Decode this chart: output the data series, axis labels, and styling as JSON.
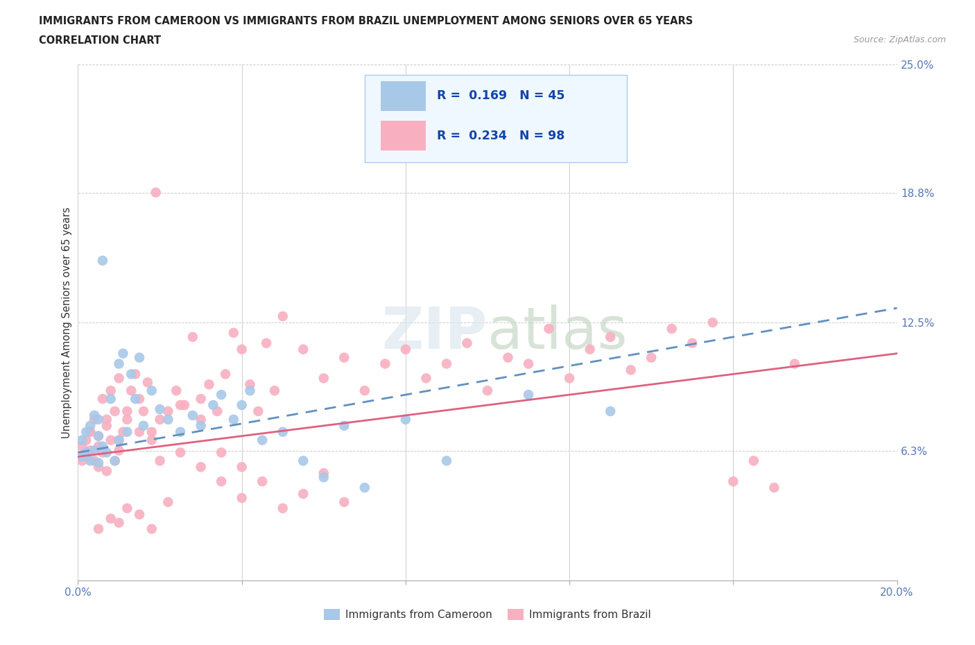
{
  "title_line1": "IMMIGRANTS FROM CAMEROON VS IMMIGRANTS FROM BRAZIL UNEMPLOYMENT AMONG SENIORS OVER 65 YEARS",
  "title_line2": "CORRELATION CHART",
  "source": "Source: ZipAtlas.com",
  "ylabel": "Unemployment Among Seniors over 65 years",
  "xlim": [
    0,
    0.2
  ],
  "ylim": [
    0,
    0.25
  ],
  "yticks_right": [
    0.063,
    0.125,
    0.188,
    0.25
  ],
  "ytick_right_labels": [
    "6.3%",
    "12.5%",
    "18.8%",
    "25.0%"
  ],
  "cameroon_R": 0.169,
  "cameroon_N": 45,
  "brazil_R": 0.234,
  "brazil_N": 98,
  "cameroon_color": "#a8c8e8",
  "brazil_color": "#f8b0c0",
  "cameroon_line_color": "#6090c0",
  "brazil_line_color": "#e06080",
  "watermark_color": "#d8e8f0",
  "cameroon_x": [
    0.001,
    0.001,
    0.002,
    0.002,
    0.003,
    0.003,
    0.004,
    0.004,
    0.005,
    0.005,
    0.005,
    0.006,
    0.006,
    0.007,
    0.008,
    0.009,
    0.01,
    0.01,
    0.011,
    0.012,
    0.013,
    0.014,
    0.015,
    0.016,
    0.018,
    0.02,
    0.022,
    0.025,
    0.028,
    0.03,
    0.033,
    0.035,
    0.038,
    0.04,
    0.042,
    0.045,
    0.05,
    0.055,
    0.06,
    0.065,
    0.07,
    0.08,
    0.09,
    0.11,
    0.13
  ],
  "cameroon_y": [
    0.06,
    0.068,
    0.062,
    0.072,
    0.058,
    0.075,
    0.063,
    0.08,
    0.057,
    0.07,
    0.078,
    0.065,
    0.155,
    0.062,
    0.088,
    0.058,
    0.068,
    0.105,
    0.11,
    0.072,
    0.1,
    0.088,
    0.108,
    0.075,
    0.092,
    0.083,
    0.078,
    0.072,
    0.08,
    0.075,
    0.085,
    0.09,
    0.078,
    0.085,
    0.092,
    0.068,
    0.072,
    0.058,
    0.05,
    0.075,
    0.045,
    0.078,
    0.058,
    0.09,
    0.082
  ],
  "brazil_x": [
    0.001,
    0.001,
    0.002,
    0.002,
    0.003,
    0.003,
    0.004,
    0.004,
    0.005,
    0.005,
    0.006,
    0.006,
    0.007,
    0.007,
    0.008,
    0.008,
    0.009,
    0.009,
    0.01,
    0.01,
    0.011,
    0.012,
    0.013,
    0.014,
    0.015,
    0.016,
    0.017,
    0.018,
    0.019,
    0.02,
    0.022,
    0.024,
    0.026,
    0.028,
    0.03,
    0.032,
    0.034,
    0.036,
    0.038,
    0.04,
    0.042,
    0.044,
    0.046,
    0.048,
    0.05,
    0.055,
    0.06,
    0.065,
    0.07,
    0.075,
    0.08,
    0.085,
    0.09,
    0.095,
    0.1,
    0.105,
    0.11,
    0.115,
    0.12,
    0.125,
    0.13,
    0.135,
    0.14,
    0.145,
    0.15,
    0.155,
    0.16,
    0.165,
    0.17,
    0.175,
    0.003,
    0.005,
    0.007,
    0.01,
    0.012,
    0.015,
    0.018,
    0.02,
    0.025,
    0.03,
    0.035,
    0.04,
    0.045,
    0.05,
    0.055,
    0.06,
    0.065,
    0.025,
    0.03,
    0.035,
    0.04,
    0.015,
    0.01,
    0.005,
    0.008,
    0.012,
    0.018,
    0.022
  ],
  "brazil_y": [
    0.065,
    0.058,
    0.068,
    0.06,
    0.063,
    0.072,
    0.058,
    0.078,
    0.055,
    0.07,
    0.062,
    0.088,
    0.053,
    0.075,
    0.068,
    0.092,
    0.058,
    0.082,
    0.063,
    0.098,
    0.072,
    0.078,
    0.092,
    0.1,
    0.088,
    0.082,
    0.096,
    0.072,
    0.188,
    0.078,
    0.082,
    0.092,
    0.085,
    0.118,
    0.088,
    0.095,
    0.082,
    0.1,
    0.12,
    0.112,
    0.095,
    0.082,
    0.115,
    0.092,
    0.128,
    0.112,
    0.098,
    0.108,
    0.092,
    0.105,
    0.112,
    0.098,
    0.105,
    0.115,
    0.092,
    0.108,
    0.105,
    0.122,
    0.098,
    0.112,
    0.118,
    0.102,
    0.108,
    0.122,
    0.115,
    0.125,
    0.048,
    0.058,
    0.045,
    0.105,
    0.072,
    0.065,
    0.078,
    0.068,
    0.082,
    0.072,
    0.068,
    0.058,
    0.085,
    0.078,
    0.062,
    0.055,
    0.048,
    0.035,
    0.042,
    0.052,
    0.038,
    0.062,
    0.055,
    0.048,
    0.04,
    0.032,
    0.028,
    0.025,
    0.03,
    0.035,
    0.025,
    0.038
  ],
  "cam_trend_x0": 0.0,
  "cam_trend_x1": 0.2,
  "cam_trend_y0": 0.062,
  "cam_trend_y1": 0.132,
  "bra_trend_x0": 0.0,
  "bra_trend_x1": 0.2,
  "bra_trend_y0": 0.06,
  "bra_trend_y1": 0.11
}
